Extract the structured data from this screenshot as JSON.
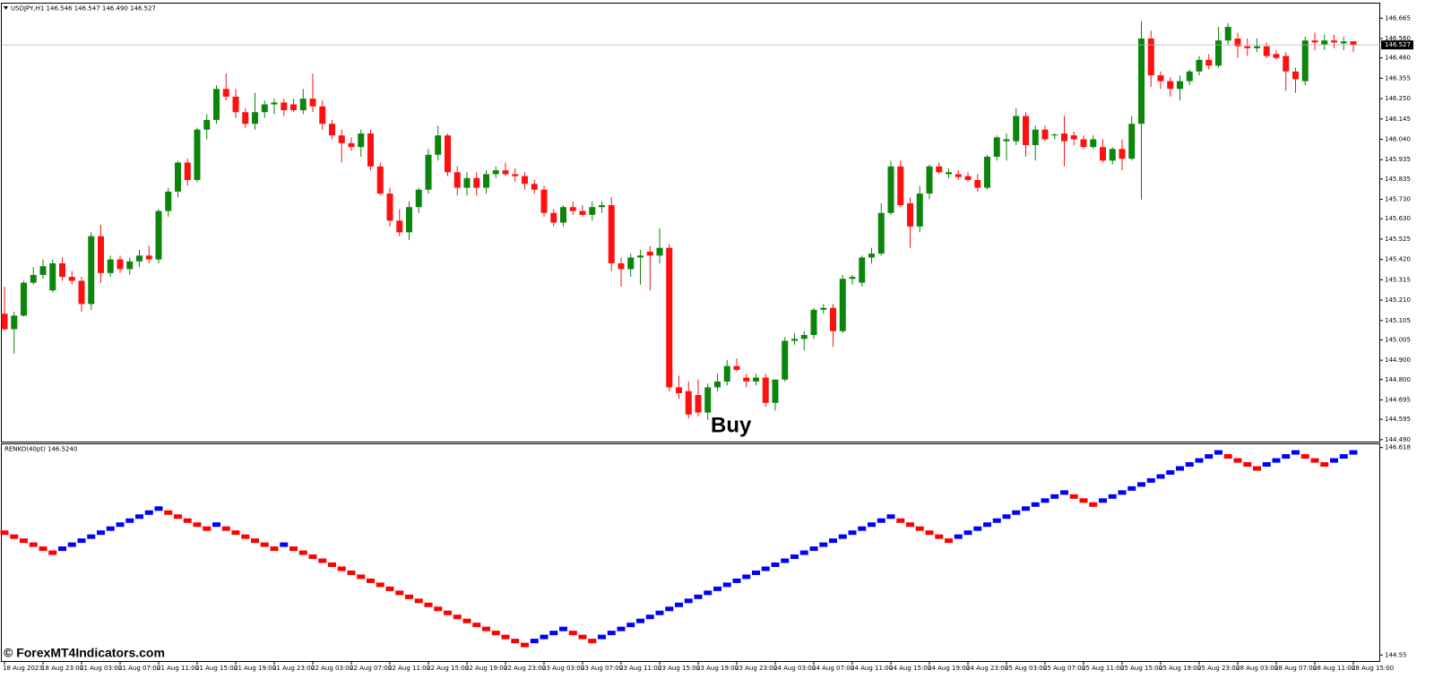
{
  "header": "USDJPY,H1  146.546 146.547 146.490 146.527",
  "watermark": "© ForexMT4Indicators.com",
  "time_labels": [
    "18 Aug 2023",
    "18 Aug 23:00",
    "21 Aug 03:00",
    "21 Aug 07:00",
    "21 Aug 11:00",
    "21 Aug 15:00",
    "21 Aug 19:00",
    "21 Aug 23:00",
    "22 Aug 03:00",
    "22 Aug 07:00",
    "22 Aug 11:00",
    "22 Aug 15:00",
    "22 Aug 19:00",
    "22 Aug 23:00",
    "23 Aug 03:00",
    "23 Aug 07:00",
    "23 Aug 11:00",
    "23 Aug 15:00",
    "23 Aug 19:00",
    "23 Aug 23:00",
    "24 Aug 03:00",
    "24 Aug 07:00",
    "24 Aug 11:00",
    "24 Aug 15:00",
    "24 Aug 19:00",
    "24 Aug 23:00",
    "25 Aug 03:00",
    "25 Aug 07:00",
    "25 Aug 11:00",
    "25 Aug 15:00",
    "25 Aug 19:00",
    "25 Aug 23:00",
    "28 Aug 03:00",
    "28 Aug 07:00",
    "28 Aug 11:00",
    "28 Aug 15:00"
  ],
  "chart_data": [
    {
      "type": "candlestick",
      "annotation": "Buy",
      "up_color": "#0b850b",
      "down_color": "#ff1010",
      "current_price_line": true,
      "ylim": [
        144.48,
        146.745
      ],
      "yticks": [
        146.665,
        {
          "value": 146.56,
          "label": "146.560"
        },
        {
          "value": 146.46,
          "label": "146.460"
        },
        146.355,
        {
          "value": 146.25,
          "label": "146.250"
        },
        146.145,
        {
          "value": 146.04,
          "label": "146.040"
        },
        145.935,
        145.835,
        {
          "value": 145.73,
          "label": "145.730"
        },
        {
          "value": 145.63,
          "label": "145.630"
        },
        145.525,
        {
          "value": 145.42,
          "label": "145.420"
        },
        145.315,
        {
          "value": 145.21,
          "label": "145.210"
        },
        145.105,
        145.005,
        {
          "value": 144.9,
          "label": "144.900"
        },
        {
          "value": 144.8,
          "label": "144.800"
        },
        144.695,
        144.595,
        {
          "value": 144.49,
          "label": "144.490"
        }
      ],
      "ohlc": [
        [
          145.14,
          145.279,
          145.055,
          145.06
        ],
        [
          145.06,
          145.15,
          144.935,
          145.13
        ],
        [
          145.13,
          145.31,
          145.125,
          145.3
        ],
        [
          145.3,
          145.38,
          145.29,
          145.34
        ],
        [
          145.34,
          145.42,
          145.32,
          145.385
        ],
        [
          145.26,
          145.42,
          145.25,
          145.4
        ],
        [
          145.4,
          145.43,
          145.31,
          145.33
        ],
        [
          145.33,
          145.36,
          145.29,
          145.31
        ],
        [
          145.31,
          145.33,
          145.15,
          145.19
        ],
        [
          145.19,
          145.56,
          145.16,
          145.54
        ],
        [
          145.54,
          145.6,
          145.3,
          145.35
        ],
        [
          145.35,
          145.44,
          145.33,
          145.42
        ],
        [
          145.42,
          145.44,
          145.35,
          145.37
        ],
        [
          145.37,
          145.43,
          145.34,
          145.41
        ],
        [
          145.41,
          145.47,
          145.38,
          145.44
        ],
        [
          145.44,
          145.49,
          145.4,
          145.42
        ],
        [
          145.42,
          145.68,
          145.4,
          145.67
        ],
        [
          145.67,
          145.79,
          145.64,
          145.77
        ],
        [
          145.77,
          145.93,
          145.74,
          145.92
        ],
        [
          145.92,
          145.94,
          145.8,
          145.83
        ],
        [
          145.83,
          146.1,
          145.82,
          146.09
        ],
        [
          146.09,
          146.17,
          146.04,
          146.14
        ],
        [
          146.14,
          146.32,
          146.12,
          146.3
        ],
        [
          146.3,
          146.38,
          146.24,
          146.26
        ],
        [
          146.26,
          146.3,
          146.15,
          146.18
        ],
        [
          146.18,
          146.2,
          146.1,
          146.12
        ],
        [
          146.12,
          146.28,
          146.09,
          146.18
        ],
        [
          146.18,
          146.24,
          146.15,
          146.22
        ],
        [
          146.22,
          146.25,
          146.17,
          146.23
        ],
        [
          146.23,
          146.25,
          146.16,
          146.19
        ],
        [
          146.22,
          146.25,
          146.18,
          146.19
        ],
        [
          146.19,
          146.3,
          146.17,
          146.25
        ],
        [
          146.25,
          146.38,
          146.18,
          146.21
        ],
        [
          146.21,
          146.24,
          146.09,
          146.12
        ],
        [
          146.12,
          146.14,
          146.04,
          146.06
        ],
        [
          146.06,
          146.09,
          145.92,
          146.02
        ],
        [
          146.02,
          146.05,
          145.98,
          146.0
        ],
        [
          146.0,
          146.09,
          145.95,
          146.07
        ],
        [
          146.07,
          146.09,
          145.88,
          145.9
        ],
        [
          145.9,
          145.92,
          145.75,
          145.76
        ],
        [
          145.76,
          145.79,
          145.59,
          145.62
        ],
        [
          145.62,
          145.68,
          145.54,
          145.56
        ],
        [
          145.56,
          145.72,
          145.52,
          145.69
        ],
        [
          145.69,
          145.79,
          145.66,
          145.78
        ],
        [
          145.78,
          145.99,
          145.76,
          145.96
        ],
        [
          145.96,
          146.11,
          145.93,
          146.06
        ],
        [
          146.06,
          146.07,
          145.85,
          145.87
        ],
        [
          145.87,
          145.9,
          145.75,
          145.79
        ],
        [
          145.79,
          145.87,
          145.75,
          145.84
        ],
        [
          145.84,
          145.87,
          145.75,
          145.79
        ],
        [
          145.79,
          145.88,
          145.76,
          145.86
        ],
        [
          145.86,
          145.9,
          145.84,
          145.88
        ],
        [
          145.88,
          145.92,
          145.85,
          145.86
        ],
        [
          145.86,
          145.89,
          145.82,
          145.85
        ],
        [
          145.85,
          145.87,
          145.78,
          145.81
        ],
        [
          145.81,
          145.83,
          145.76,
          145.78
        ],
        [
          145.78,
          145.8,
          145.64,
          145.66
        ],
        [
          145.66,
          145.68,
          145.59,
          145.61
        ],
        [
          145.61,
          145.7,
          145.59,
          145.69
        ],
        [
          145.69,
          145.72,
          145.65,
          145.67
        ],
        [
          145.67,
          145.7,
          145.64,
          145.65
        ],
        [
          145.65,
          145.72,
          145.62,
          145.69
        ],
        [
          145.69,
          145.72,
          145.66,
          145.7
        ],
        [
          145.7,
          145.74,
          145.36,
          145.4
        ],
        [
          145.4,
          145.43,
          145.28,
          145.37
        ],
        [
          145.37,
          145.45,
          145.33,
          145.43
        ],
        [
          145.43,
          145.47,
          145.29,
          145.44
        ],
        [
          145.46,
          145.49,
          145.26,
          145.44
        ],
        [
          145.44,
          145.58,
          145.4,
          145.48
        ],
        [
          145.48,
          145.5,
          144.74,
          144.76
        ],
        [
          144.76,
          144.82,
          144.7,
          144.73
        ],
        [
          144.74,
          144.79,
          144.6,
          144.62
        ],
        [
          144.72,
          144.8,
          144.61,
          144.63
        ],
        [
          144.63,
          144.78,
          144.59,
          144.76
        ],
        [
          144.76,
          144.83,
          144.74,
          144.79
        ],
        [
          144.79,
          144.9,
          144.77,
          144.87
        ],
        [
          144.87,
          144.91,
          144.84,
          144.85
        ],
        [
          144.81,
          144.83,
          144.76,
          144.79
        ],
        [
          144.79,
          144.83,
          144.77,
          144.81
        ],
        [
          144.81,
          144.83,
          144.66,
          144.68
        ],
        [
          144.68,
          144.8,
          144.64,
          144.8
        ],
        [
          144.8,
          145.02,
          144.79,
          145.0
        ],
        [
          145.0,
          145.04,
          144.98,
          145.01
        ],
        [
          145.01,
          145.05,
          144.95,
          145.03
        ],
        [
          145.03,
          145.17,
          145.01,
          145.16
        ],
        [
          145.16,
          145.19,
          145.14,
          145.17
        ],
        [
          145.17,
          145.19,
          144.97,
          145.05
        ],
        [
          145.05,
          145.34,
          145.04,
          145.32
        ],
        [
          145.32,
          145.34,
          145.29,
          145.33
        ],
        [
          145.3,
          145.44,
          145.28,
          145.43
        ],
        [
          145.43,
          145.48,
          145.4,
          145.45
        ],
        [
          145.45,
          145.71,
          145.44,
          145.66
        ],
        [
          145.66,
          145.93,
          145.65,
          145.9
        ],
        [
          145.9,
          145.93,
          145.69,
          145.7
        ],
        [
          145.71,
          145.74,
          145.48,
          145.59
        ],
        [
          145.59,
          145.8,
          145.56,
          145.76
        ],
        [
          145.76,
          145.91,
          145.73,
          145.9
        ],
        [
          145.9,
          145.92,
          145.86,
          145.87
        ],
        [
          145.86,
          145.89,
          145.84,
          145.87
        ],
        [
          145.86,
          145.88,
          145.83,
          145.845
        ],
        [
          145.85,
          145.87,
          145.82,
          145.83
        ],
        [
          145.83,
          145.86,
          145.77,
          145.79
        ],
        [
          145.79,
          145.96,
          145.78,
          145.95
        ],
        [
          145.95,
          146.06,
          145.93,
          146.05
        ],
        [
          146.03,
          146.07,
          145.93,
          146.04
        ],
        [
          146.03,
          146.2,
          146.01,
          146.16
        ],
        [
          146.16,
          146.18,
          145.95,
          146.01
        ],
        [
          146.01,
          146.11,
          145.93,
          146.09
        ],
        [
          146.09,
          146.11,
          146.03,
          146.04
        ],
        [
          146.06,
          146.07,
          146.04,
          146.065
        ],
        [
          146.07,
          146.16,
          145.9,
          146.03
        ],
        [
          146.06,
          146.08,
          146.01,
          146.04
        ],
        [
          146.04,
          146.06,
          145.99,
          146.0
        ],
        [
          146.0,
          146.06,
          145.99,
          146.04
        ],
        [
          146.0,
          146.04,
          145.92,
          145.93
        ],
        [
          145.93,
          146.0,
          145.91,
          145.99
        ],
        [
          145.99,
          146.04,
          145.88,
          145.94
        ],
        [
          145.94,
          146.16,
          145.93,
          146.12
        ],
        [
          146.12,
          146.65,
          145.73,
          146.56
        ],
        [
          146.56,
          146.6,
          146.31,
          146.37
        ],
        [
          146.37,
          146.39,
          146.3,
          146.34
        ],
        [
          146.34,
          146.36,
          146.26,
          146.3
        ],
        [
          146.3,
          146.37,
          146.24,
          146.34
        ],
        [
          146.34,
          146.4,
          146.32,
          146.39
        ],
        [
          146.39,
          146.47,
          146.37,
          146.45
        ],
        [
          146.45,
          146.48,
          146.4,
          146.42
        ],
        [
          146.42,
          146.62,
          146.41,
          146.55
        ],
        [
          146.55,
          146.64,
          146.53,
          146.62
        ],
        [
          146.56,
          146.59,
          146.46,
          146.52
        ],
        [
          146.52,
          146.56,
          146.47,
          146.51
        ],
        [
          146.51,
          146.56,
          146.49,
          146.52
        ],
        [
          146.52,
          146.54,
          146.46,
          146.47
        ],
        [
          146.48,
          146.5,
          146.45,
          146.46
        ],
        [
          146.47,
          146.49,
          146.29,
          146.39
        ],
        [
          146.39,
          146.41,
          146.28,
          146.35
        ],
        [
          146.34,
          146.57,
          146.32,
          146.55
        ],
        [
          146.55,
          146.59,
          146.5,
          146.54
        ],
        [
          146.53,
          146.58,
          146.5,
          146.55
        ],
        [
          146.55,
          146.58,
          146.51,
          146.54
        ],
        [
          146.535,
          146.57,
          146.5,
          146.545
        ],
        [
          146.546,
          146.547,
          146.49,
          146.527
        ]
      ]
    },
    {
      "type": "renko",
      "title": "RENKO(40pt) 146.5240",
      "up_color": "#0000ff",
      "down_color": "#ff0000",
      "ylim": [
        144.49,
        146.66
      ],
      "yticks": [
        146.618,
        144.55
      ],
      "bricks": [
        145.77,
        145.73,
        145.69,
        145.65,
        145.61,
        145.57,
        145.61,
        145.65,
        145.69,
        145.73,
        145.77,
        145.81,
        145.85,
        145.89,
        145.93,
        145.97,
        146.01,
        145.97,
        145.93,
        145.89,
        145.85,
        145.81,
        145.85,
        145.81,
        145.77,
        145.73,
        145.69,
        145.65,
        145.61,
        145.65,
        145.61,
        145.57,
        145.53,
        145.49,
        145.45,
        145.41,
        145.37,
        145.33,
        145.29,
        145.25,
        145.21,
        145.17,
        145.13,
        145.09,
        145.05,
        145.01,
        144.97,
        144.93,
        144.89,
        144.85,
        144.81,
        144.77,
        144.73,
        144.69,
        144.65,
        144.69,
        144.73,
        144.77,
        144.81,
        144.77,
        144.73,
        144.69,
        144.73,
        144.77,
        144.81,
        144.85,
        144.89,
        144.93,
        144.97,
        145.01,
        145.05,
        145.09,
        145.13,
        145.17,
        145.21,
        145.25,
        145.29,
        145.33,
        145.37,
        145.41,
        145.45,
        145.49,
        145.53,
        145.57,
        145.61,
        145.65,
        145.69,
        145.73,
        145.77,
        145.81,
        145.85,
        145.89,
        145.93,
        145.89,
        145.85,
        145.81,
        145.77,
        145.73,
        145.69,
        145.73,
        145.77,
        145.81,
        145.85,
        145.89,
        145.93,
        145.97,
        146.01,
        146.05,
        146.09,
        146.13,
        146.17,
        146.13,
        146.09,
        146.05,
        146.09,
        146.13,
        146.17,
        146.21,
        146.25,
        146.29,
        146.33,
        146.37,
        146.41,
        146.45,
        146.49,
        146.53,
        146.57,
        146.53,
        146.49,
        146.45,
        146.41,
        146.45,
        146.49,
        146.53,
        146.57,
        146.53,
        146.49,
        146.45,
        146.49,
        146.53,
        146.57
      ]
    }
  ]
}
